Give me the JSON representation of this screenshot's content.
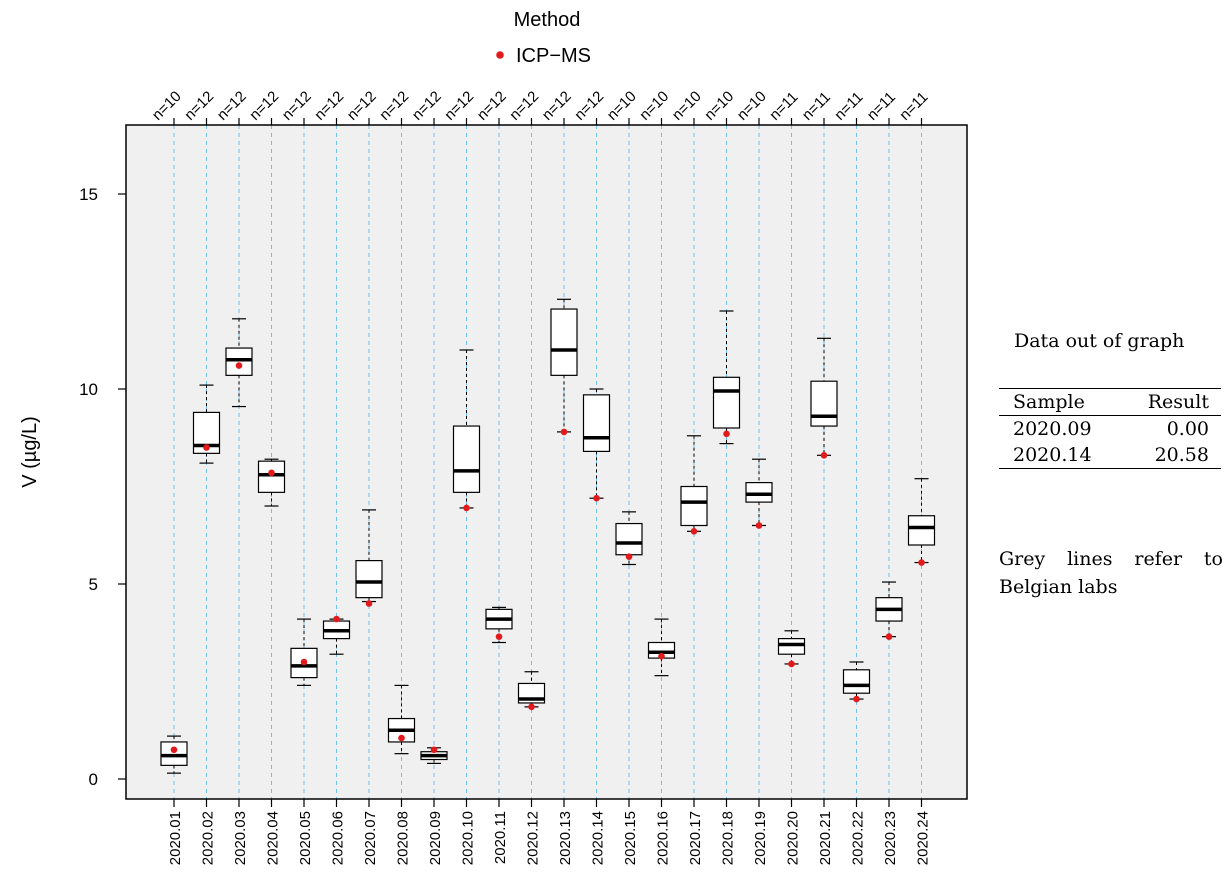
{
  "chart_data": {
    "type": "boxplot",
    "legend_title": "Method",
    "legend_entries": [
      {
        "label": "ICP−MS",
        "color": "#e31a1c"
      }
    ],
    "legend_placement": "top-center",
    "ylabel": "V (µg/L)",
    "xlabel": "",
    "ylim": [
      -0.5,
      16.8
    ],
    "yticks": [
      0,
      5,
      10,
      15
    ],
    "grid": "vertical-dashed",
    "grid_color": "#6ec0f0",
    "panel_color": "#f0f0f0",
    "categories": [
      "2020.01",
      "2020.02",
      "2020.03",
      "2020.04",
      "2020.05",
      "2020.06",
      "2020.07",
      "2020.08",
      "2020.09",
      "2020.10",
      "2020.11",
      "2020.12",
      "2020.13",
      "2020.14",
      "2020.15",
      "2020.16",
      "2020.17",
      "2020.18",
      "2020.19",
      "2020.20",
      "2020.21",
      "2020.22",
      "2020.23",
      "2020.24"
    ],
    "n_labels": [
      "n=10",
      "n=12",
      "n=12",
      "n=12",
      "n=12",
      "n=12",
      "n=12",
      "n=12",
      "n=12",
      "n=12",
      "n=12",
      "n=12",
      "n=12",
      "n=12",
      "n=10",
      "n=10",
      "n=10",
      "n=10",
      "n=10",
      "n=11",
      "n=11",
      "n=11",
      "n=11",
      "n=11"
    ],
    "boxes": [
      {
        "whislo": 0.15,
        "q1": 0.35,
        "med": 0.6,
        "q3": 0.95,
        "whishi": 1.1
      },
      {
        "whislo": 8.1,
        "q1": 8.35,
        "med": 8.55,
        "q3": 9.4,
        "whishi": 10.1
      },
      {
        "whislo": 9.55,
        "q1": 10.35,
        "med": 10.75,
        "q3": 11.05,
        "whishi": 11.8
      },
      {
        "whislo": 7.0,
        "q1": 7.35,
        "med": 7.8,
        "q3": 8.15,
        "whishi": 8.2
      },
      {
        "whislo": 2.4,
        "q1": 2.6,
        "med": 2.9,
        "q3": 3.35,
        "whishi": 4.1
      },
      {
        "whislo": 3.2,
        "q1": 3.6,
        "med": 3.8,
        "q3": 4.05,
        "whishi": 4.1
      },
      {
        "whislo": 4.55,
        "q1": 4.65,
        "med": 5.05,
        "q3": 5.6,
        "whishi": 6.9
      },
      {
        "whislo": 0.65,
        "q1": 0.95,
        "med": 1.25,
        "q3": 1.55,
        "whishi": 2.4
      },
      {
        "whislo": 0.4,
        "q1": 0.5,
        "med": 0.6,
        "q3": 0.7,
        "whishi": 0.8
      },
      {
        "whislo": 6.95,
        "q1": 7.35,
        "med": 7.9,
        "q3": 9.05,
        "whishi": 11.0
      },
      {
        "whislo": 3.5,
        "q1": 3.85,
        "med": 4.1,
        "q3": 4.35,
        "whishi": 4.4
      },
      {
        "whislo": 1.85,
        "q1": 1.95,
        "med": 2.05,
        "q3": 2.45,
        "whishi": 2.75
      },
      {
        "whislo": 8.9,
        "q1": 10.35,
        "med": 11.0,
        "q3": 12.05,
        "whishi": 12.3
      },
      {
        "whislo": 7.2,
        "q1": 8.4,
        "med": 8.75,
        "q3": 9.85,
        "whishi": 10.0
      },
      {
        "whislo": 5.5,
        "q1": 5.75,
        "med": 6.05,
        "q3": 6.55,
        "whishi": 6.85
      },
      {
        "whislo": 2.65,
        "q1": 3.1,
        "med": 3.25,
        "q3": 3.5,
        "whishi": 4.1
      },
      {
        "whislo": 6.35,
        "q1": 6.5,
        "med": 7.1,
        "q3": 7.5,
        "whishi": 8.8
      },
      {
        "whislo": 8.6,
        "q1": 9.0,
        "med": 9.95,
        "q3": 10.3,
        "whishi": 12.0
      },
      {
        "whislo": 6.5,
        "q1": 7.1,
        "med": 7.3,
        "q3": 7.6,
        "whishi": 8.2
      },
      {
        "whislo": 2.95,
        "q1": 3.2,
        "med": 3.45,
        "q3": 3.6,
        "whishi": 3.8
      },
      {
        "whislo": 8.3,
        "q1": 9.05,
        "med": 9.3,
        "q3": 10.2,
        "whishi": 11.3
      },
      {
        "whislo": 2.05,
        "q1": 2.2,
        "med": 2.4,
        "q3": 2.8,
        "whishi": 3.0
      },
      {
        "whislo": 3.65,
        "q1": 4.05,
        "med": 4.35,
        "q3": 4.65,
        "whishi": 5.05
      },
      {
        "whislo": 5.55,
        "q1": 6.0,
        "med": 6.45,
        "q3": 6.75,
        "whishi": 7.7
      }
    ],
    "icp_ms": [
      0.75,
      8.5,
      10.6,
      7.85,
      3.0,
      4.1,
      4.5,
      1.05,
      0.75,
      6.95,
      3.65,
      1.85,
      8.9,
      7.2,
      5.7,
      3.15,
      6.35,
      8.85,
      6.5,
      2.95,
      8.3,
      2.05,
      3.65,
      5.55
    ]
  },
  "side_panel": {
    "title": "Data out of graph",
    "columns": [
      "Sample",
      "Result"
    ],
    "rows": [
      [
        "2020.09",
        "0.00"
      ],
      [
        "2020.14",
        "20.58"
      ]
    ],
    "note": "Grey lines refer to Belgian labs"
  }
}
